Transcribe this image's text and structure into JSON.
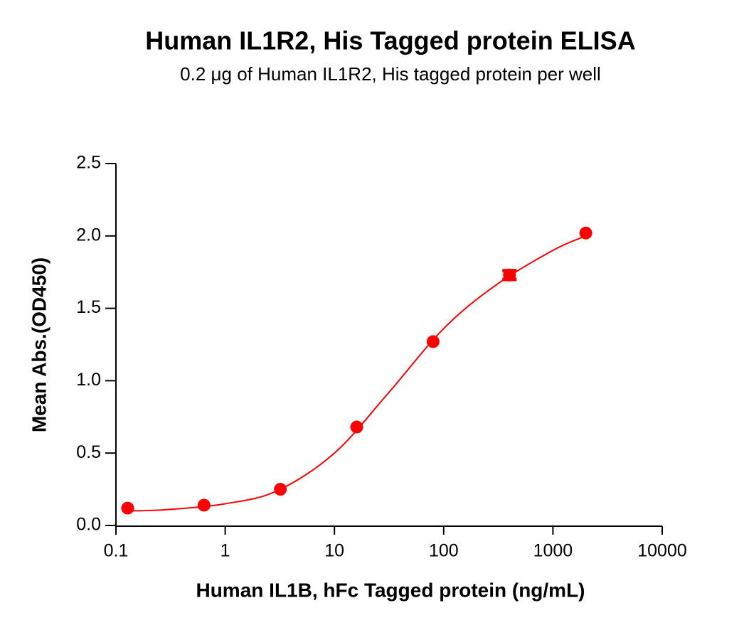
{
  "chart_data": {
    "type": "scatter",
    "title": "Human IL1R2, His Tagged protein ELISA",
    "subtitle": "0.2 μg of Human IL1R2, His tagged protein per well",
    "x_label": "Human IL1B, hFc Tagged protein (ng/mL)",
    "y_label": "Mean Abs.(OD450)",
    "x_scale": "log",
    "xlim": [
      0.1,
      10000
    ],
    "xticks": [
      0.1,
      1,
      10,
      100,
      1000,
      10000
    ],
    "ylim": [
      0,
      2.5
    ],
    "yticks": [
      {
        "value": 0,
        "label": "0.0"
      },
      0.5,
      {
        "value": 1,
        "label": "1.0"
      },
      1.5,
      {
        "value": 2,
        "label": "2.0"
      },
      2.5
    ],
    "series": [
      {
        "color": "#ff0000",
        "style": "points",
        "x": [
          0.128,
          0.64,
          3.2,
          16,
          80,
          400,
          2000
        ],
        "values": [
          0.12,
          0.14,
          0.25,
          0.68,
          1.27,
          1.73,
          2.02
        ],
        "errors": [
          null,
          null,
          null,
          null,
          null,
          0.03,
          null
        ]
      },
      {
        "color": "#ff0000",
        "style": "curve",
        "x": [
          0.128,
          0.3,
          1,
          3,
          10,
          30,
          100,
          300,
          1000,
          2000
        ],
        "values": [
          0.1,
          0.11,
          0.15,
          0.24,
          0.5,
          0.9,
          1.36,
          1.66,
          1.9,
          2.0
        ]
      }
    ]
  }
}
